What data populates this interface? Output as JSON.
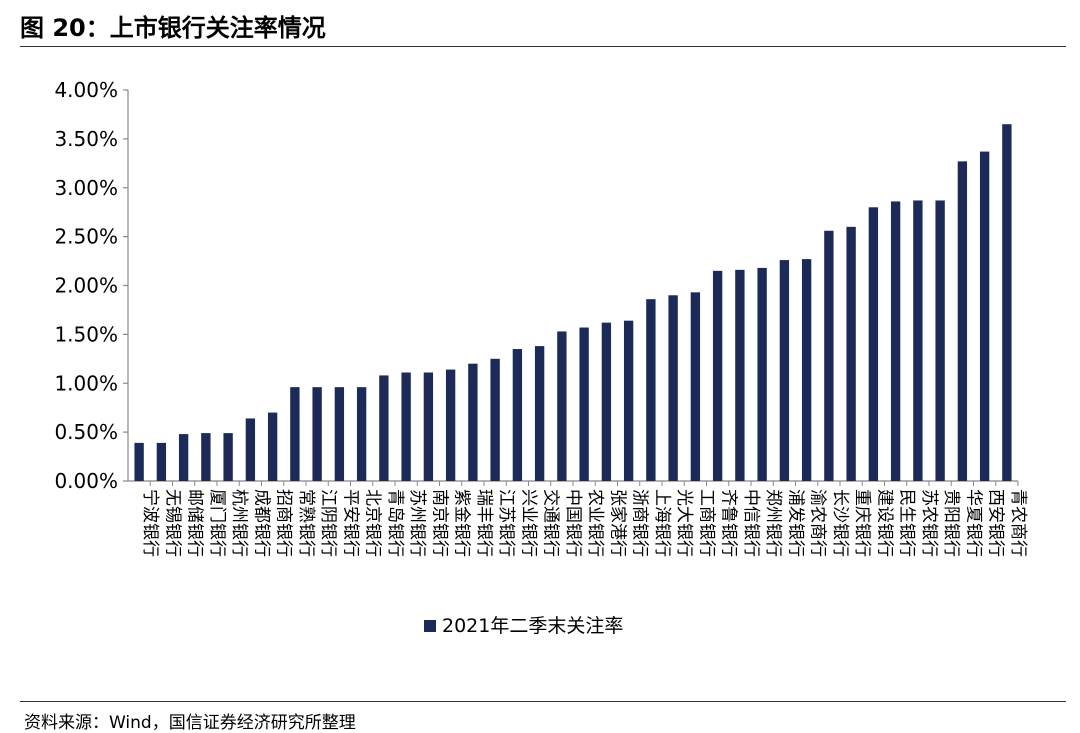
{
  "figure": {
    "title": "图 20：上市银行关注率情况",
    "source": "资料来源：Wind，国信证券经济研究所整理"
  },
  "colors": {
    "bar": "#1b2a57",
    "axis": "#888888"
  },
  "chart_data": {
    "type": "bar",
    "title": "",
    "xlabel": "",
    "ylabel": "",
    "ylim": [
      0,
      4.0
    ],
    "yticks": [
      "0.00%",
      "0.50%",
      "1.00%",
      "1.50%",
      "2.00%",
      "2.50%",
      "3.00%",
      "3.50%",
      "4.00%"
    ],
    "grid": false,
    "legend": "bottom-center",
    "categories": [
      "宁波银行",
      "无锡银行",
      "邮储银行",
      "厦门银行",
      "杭州银行",
      "成都银行",
      "招商银行",
      "常熟银行",
      "江阴银行",
      "平安银行",
      "北京银行",
      "青岛银行",
      "苏州银行",
      "南京银行",
      "紫金银行",
      "瑞丰银行",
      "江苏银行",
      "兴业银行",
      "交通银行",
      "中国银行",
      "农业银行",
      "张家港行",
      "浙商银行",
      "上海银行",
      "光大银行",
      "工商银行",
      "齐鲁银行",
      "中信银行",
      "郑州银行",
      "浦发银行",
      "渝农商行",
      "长沙银行",
      "重庆银行",
      "建设银行",
      "民生银行",
      "苏农银行",
      "贵阳银行",
      "华夏银行",
      "西安银行",
      "青农商行"
    ],
    "series": [
      {
        "name": "2021年二季末关注率",
        "values": [
          0.39,
          0.39,
          0.48,
          0.49,
          0.49,
          0.64,
          0.7,
          0.96,
          0.96,
          0.96,
          0.96,
          1.08,
          1.11,
          1.11,
          1.14,
          1.2,
          1.25,
          1.35,
          1.38,
          1.53,
          1.57,
          1.62,
          1.64,
          1.86,
          1.9,
          1.93,
          2.15,
          2.16,
          2.18,
          2.26,
          2.27,
          2.56,
          2.6,
          2.8,
          2.86,
          2.87,
          2.87,
          3.27,
          3.37,
          3.65
        ]
      }
    ]
  }
}
